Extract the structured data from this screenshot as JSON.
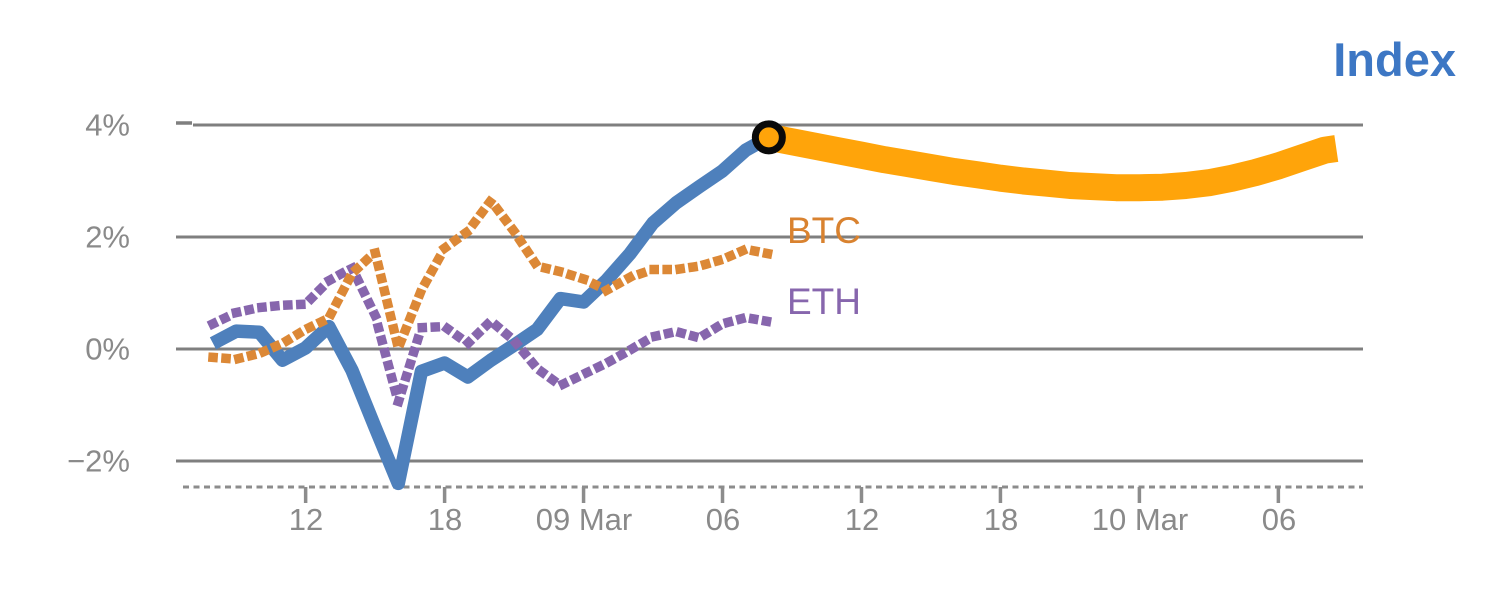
{
  "title": "Index",
  "series_labels": {
    "btc": "BTC",
    "eth": "ETH"
  },
  "axes": {
    "y_labels": [
      "4%",
      "2%",
      "0%",
      "−2%"
    ],
    "x_labels": [
      "12",
      "18",
      "09 Mar",
      "06",
      "12",
      "18",
      "10 Mar",
      "06"
    ]
  },
  "colors": {
    "index_line": "#4e80bc",
    "index_title": "#3d77c4",
    "btc": "#dc8836",
    "eth": "#8766ad",
    "forecast_band": "#ffa40a",
    "marker_ring": "#0a0a0a",
    "grid": "#7f7f7f",
    "axis_text": "#8a8a8a"
  },
  "chart_data": {
    "type": "line",
    "unit": "percent",
    "title": "Index",
    "x_axis": {
      "tick_labels": [
        "12",
        "18",
        "09 Mar",
        "06",
        "12",
        "18",
        "10 Mar",
        "06"
      ],
      "tick_hours": [
        4,
        10,
        16,
        22,
        28,
        34,
        40,
        46
      ],
      "hours_range": [
        0,
        48.5
      ]
    },
    "y_axis": {
      "tick_labels": [
        "4%",
        "2%",
        "0%",
        "−2%"
      ],
      "tick_values": [
        4,
        2,
        0,
        -2
      ],
      "ylim": [
        -2.8,
        4.7
      ],
      "grid": true
    },
    "series": [
      {
        "name": "Index",
        "style": "solid",
        "color": "#4e80bc",
        "hours": [
          0,
          1,
          2,
          3,
          4,
          5,
          6,
          7,
          8,
          9,
          10,
          11,
          12,
          13,
          14,
          15,
          16,
          17,
          18,
          19,
          20,
          21,
          22,
          23,
          24
        ],
        "values": [
          0.1,
          0.32,
          0.3,
          -0.2,
          0.02,
          0.4,
          -0.38,
          -1.4,
          -2.4,
          -0.4,
          -0.25,
          -0.5,
          -0.2,
          0.07,
          0.35,
          0.9,
          0.84,
          1.23,
          1.7,
          2.25,
          2.61,
          2.9,
          3.18,
          3.55,
          3.78
        ]
      },
      {
        "name": "ETH",
        "style": "dotted",
        "color": "#8766ad",
        "hours": [
          0,
          1,
          2,
          3,
          4,
          5,
          6,
          7,
          8,
          9,
          10,
          11,
          12,
          13,
          14,
          15,
          16,
          17,
          18,
          19,
          20,
          21,
          22,
          23,
          24
        ],
        "values": [
          0.45,
          0.65,
          0.74,
          0.78,
          0.8,
          1.22,
          1.45,
          0.6,
          -0.95,
          0.38,
          0.4,
          0.1,
          0.5,
          0.15,
          -0.35,
          -0.65,
          -0.45,
          -0.25,
          -0.02,
          0.22,
          0.31,
          0.2,
          0.45,
          0.56,
          0.49
        ]
      },
      {
        "name": "BTC",
        "style": "dotted",
        "color": "#dc8836",
        "hours": [
          0,
          1,
          2,
          3,
          4,
          5,
          6,
          7,
          8,
          9,
          10,
          11,
          12,
          13,
          14,
          15,
          16,
          17,
          18,
          19,
          20,
          21,
          22,
          23,
          24
        ],
        "values": [
          -0.15,
          -0.18,
          -0.08,
          0.1,
          0.35,
          0.55,
          1.35,
          1.73,
          0.02,
          1.05,
          1.8,
          2.1,
          2.65,
          2.1,
          1.48,
          1.38,
          1.25,
          1.05,
          1.28,
          1.42,
          1.42,
          1.48,
          1.6,
          1.78,
          1.7
        ]
      },
      {
        "name": "Index forecast",
        "style": "band",
        "color": "#ffa40a",
        "hours": [
          24,
          25,
          26,
          27,
          28,
          29,
          30,
          31,
          32,
          33,
          34,
          35,
          36,
          37,
          38,
          39,
          40,
          41,
          42,
          43,
          44,
          45,
          46,
          47,
          48,
          48.5
        ],
        "values": [
          3.78,
          3.7,
          3.62,
          3.54,
          3.46,
          3.38,
          3.31,
          3.24,
          3.17,
          3.11,
          3.05,
          3.0,
          2.96,
          2.92,
          2.9,
          2.88,
          2.88,
          2.89,
          2.92,
          2.97,
          3.05,
          3.15,
          3.27,
          3.41,
          3.55,
          3.58
        ]
      }
    ],
    "marker": {
      "series": "Index",
      "hour": 24,
      "value": 3.78
    }
  }
}
